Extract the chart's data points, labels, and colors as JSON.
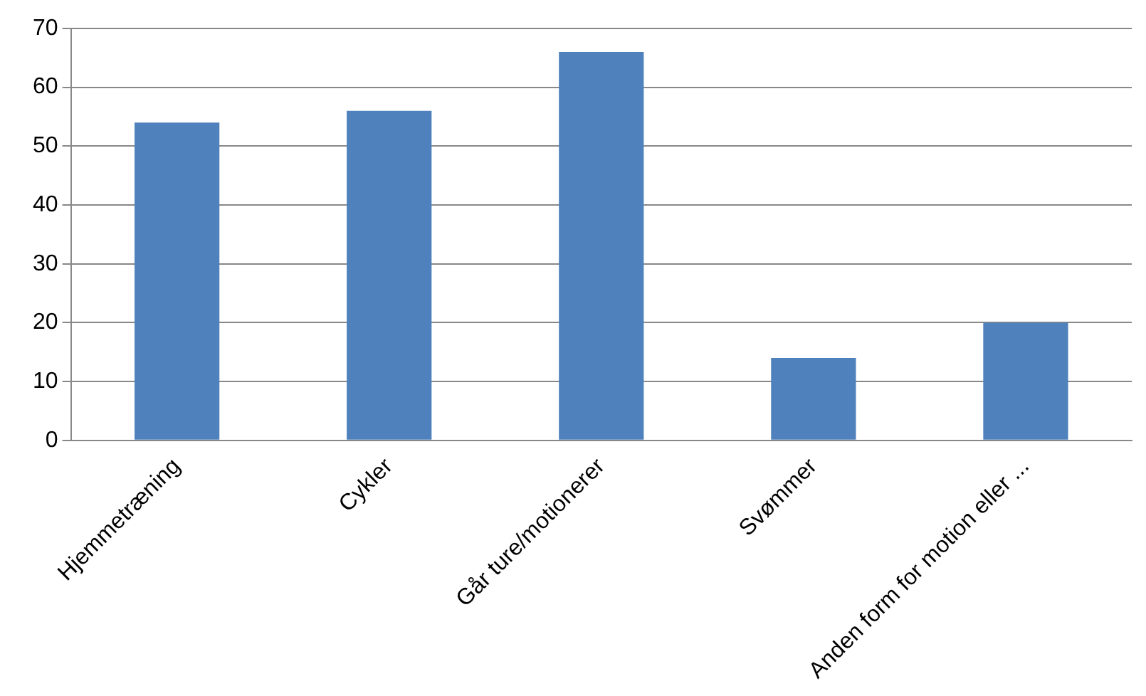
{
  "chart_data": {
    "type": "bar",
    "categories": [
      "Hjemmetræning",
      "Cykler",
      "Går ture/motionerer",
      "Svømmer",
      "Anden form for motion eller ..."
    ],
    "values": [
      54,
      56,
      66,
      14,
      20
    ],
    "color": "#4f81bd",
    "ylim": [
      0,
      70
    ],
    "yticks": [
      0,
      10,
      20,
      30,
      40,
      50,
      60,
      70
    ],
    "grid": "y",
    "legend": false
  }
}
